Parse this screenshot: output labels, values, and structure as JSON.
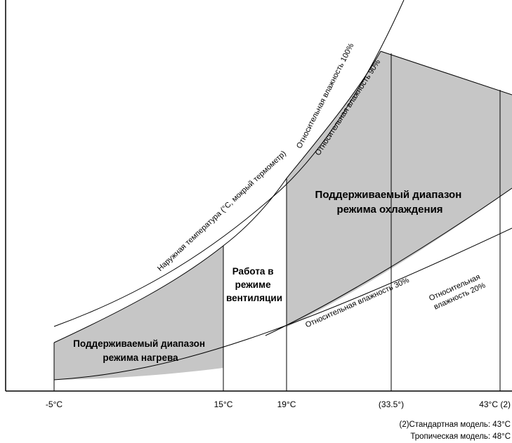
{
  "diagram": {
    "x_ticks": [
      "-5°C",
      "15°C",
      "19°C",
      "(33.5°)",
      "43°C (2)"
    ],
    "regions": {
      "heating": [
        "Поддерживаемый диапазон",
        "режима нагрева"
      ],
      "fan": [
        "Работа в",
        "режиме",
        "вентиляции"
      ],
      "cooling": [
        "Поддерживаемый диапазон",
        "режима охлаждения"
      ]
    },
    "curves": {
      "rh100": "Относительная влажность 100%",
      "rh90": "Относительная влажность 90%",
      "wet_bulb": "Наружная температура (°C, мокрый термометр)",
      "rh30": "Относительная влажность 30%",
      "rh20": [
        "Относительная",
        "влажность 20%"
      ]
    },
    "colors": {
      "region_fill": "#c6c6c6",
      "line": "#000000"
    }
  },
  "notes": [
    "(2)Стандартная модель: 43°C",
    "Тропическая модель: 48°C"
  ]
}
